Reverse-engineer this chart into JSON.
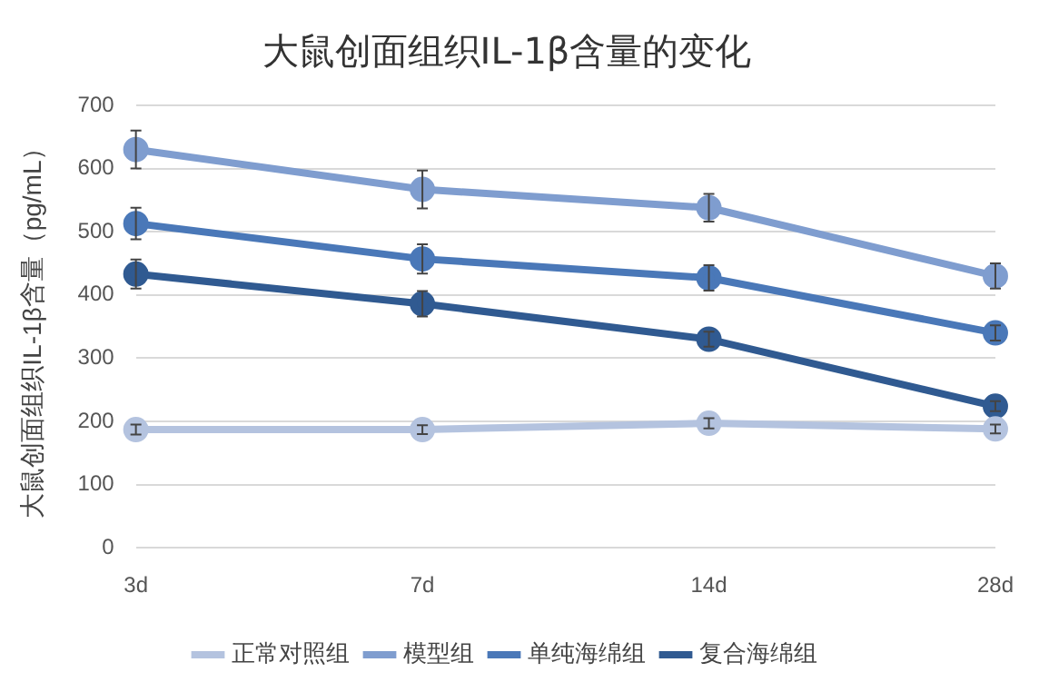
{
  "chart_data": {
    "type": "line",
    "title": "大鼠创面组织IL-1β含量的变化",
    "ylabel": "大鼠创面组织IL-1β含量（pg/mL）",
    "categories": [
      "3d",
      "7d",
      "14d",
      "28d"
    ],
    "series": [
      {
        "name": "正常对照组",
        "color": "#b4c3df",
        "values": [
          187,
          187,
          197,
          188
        ],
        "errors": [
          8,
          7,
          8,
          7
        ]
      },
      {
        "name": "模型组",
        "color": "#7f9dcf",
        "values": [
          630,
          567,
          538,
          430
        ],
        "errors": [
          30,
          30,
          22,
          20
        ]
      },
      {
        "name": "单纯海绵组",
        "color": "#4a78b8",
        "values": [
          513,
          457,
          427,
          340
        ],
        "errors": [
          25,
          23,
          20,
          12
        ]
      },
      {
        "name": "复合海绵组",
        "color": "#305a91",
        "values": [
          433,
          386,
          330,
          224
        ],
        "errors": [
          23,
          20,
          12,
          8
        ]
      }
    ],
    "ylim": [
      0,
      700
    ],
    "yticks": [
      0,
      100,
      200,
      300,
      400,
      500,
      600,
      700
    ],
    "grid": "y",
    "legend": "bottom",
    "marker": "circle",
    "line_style": "solid"
  }
}
